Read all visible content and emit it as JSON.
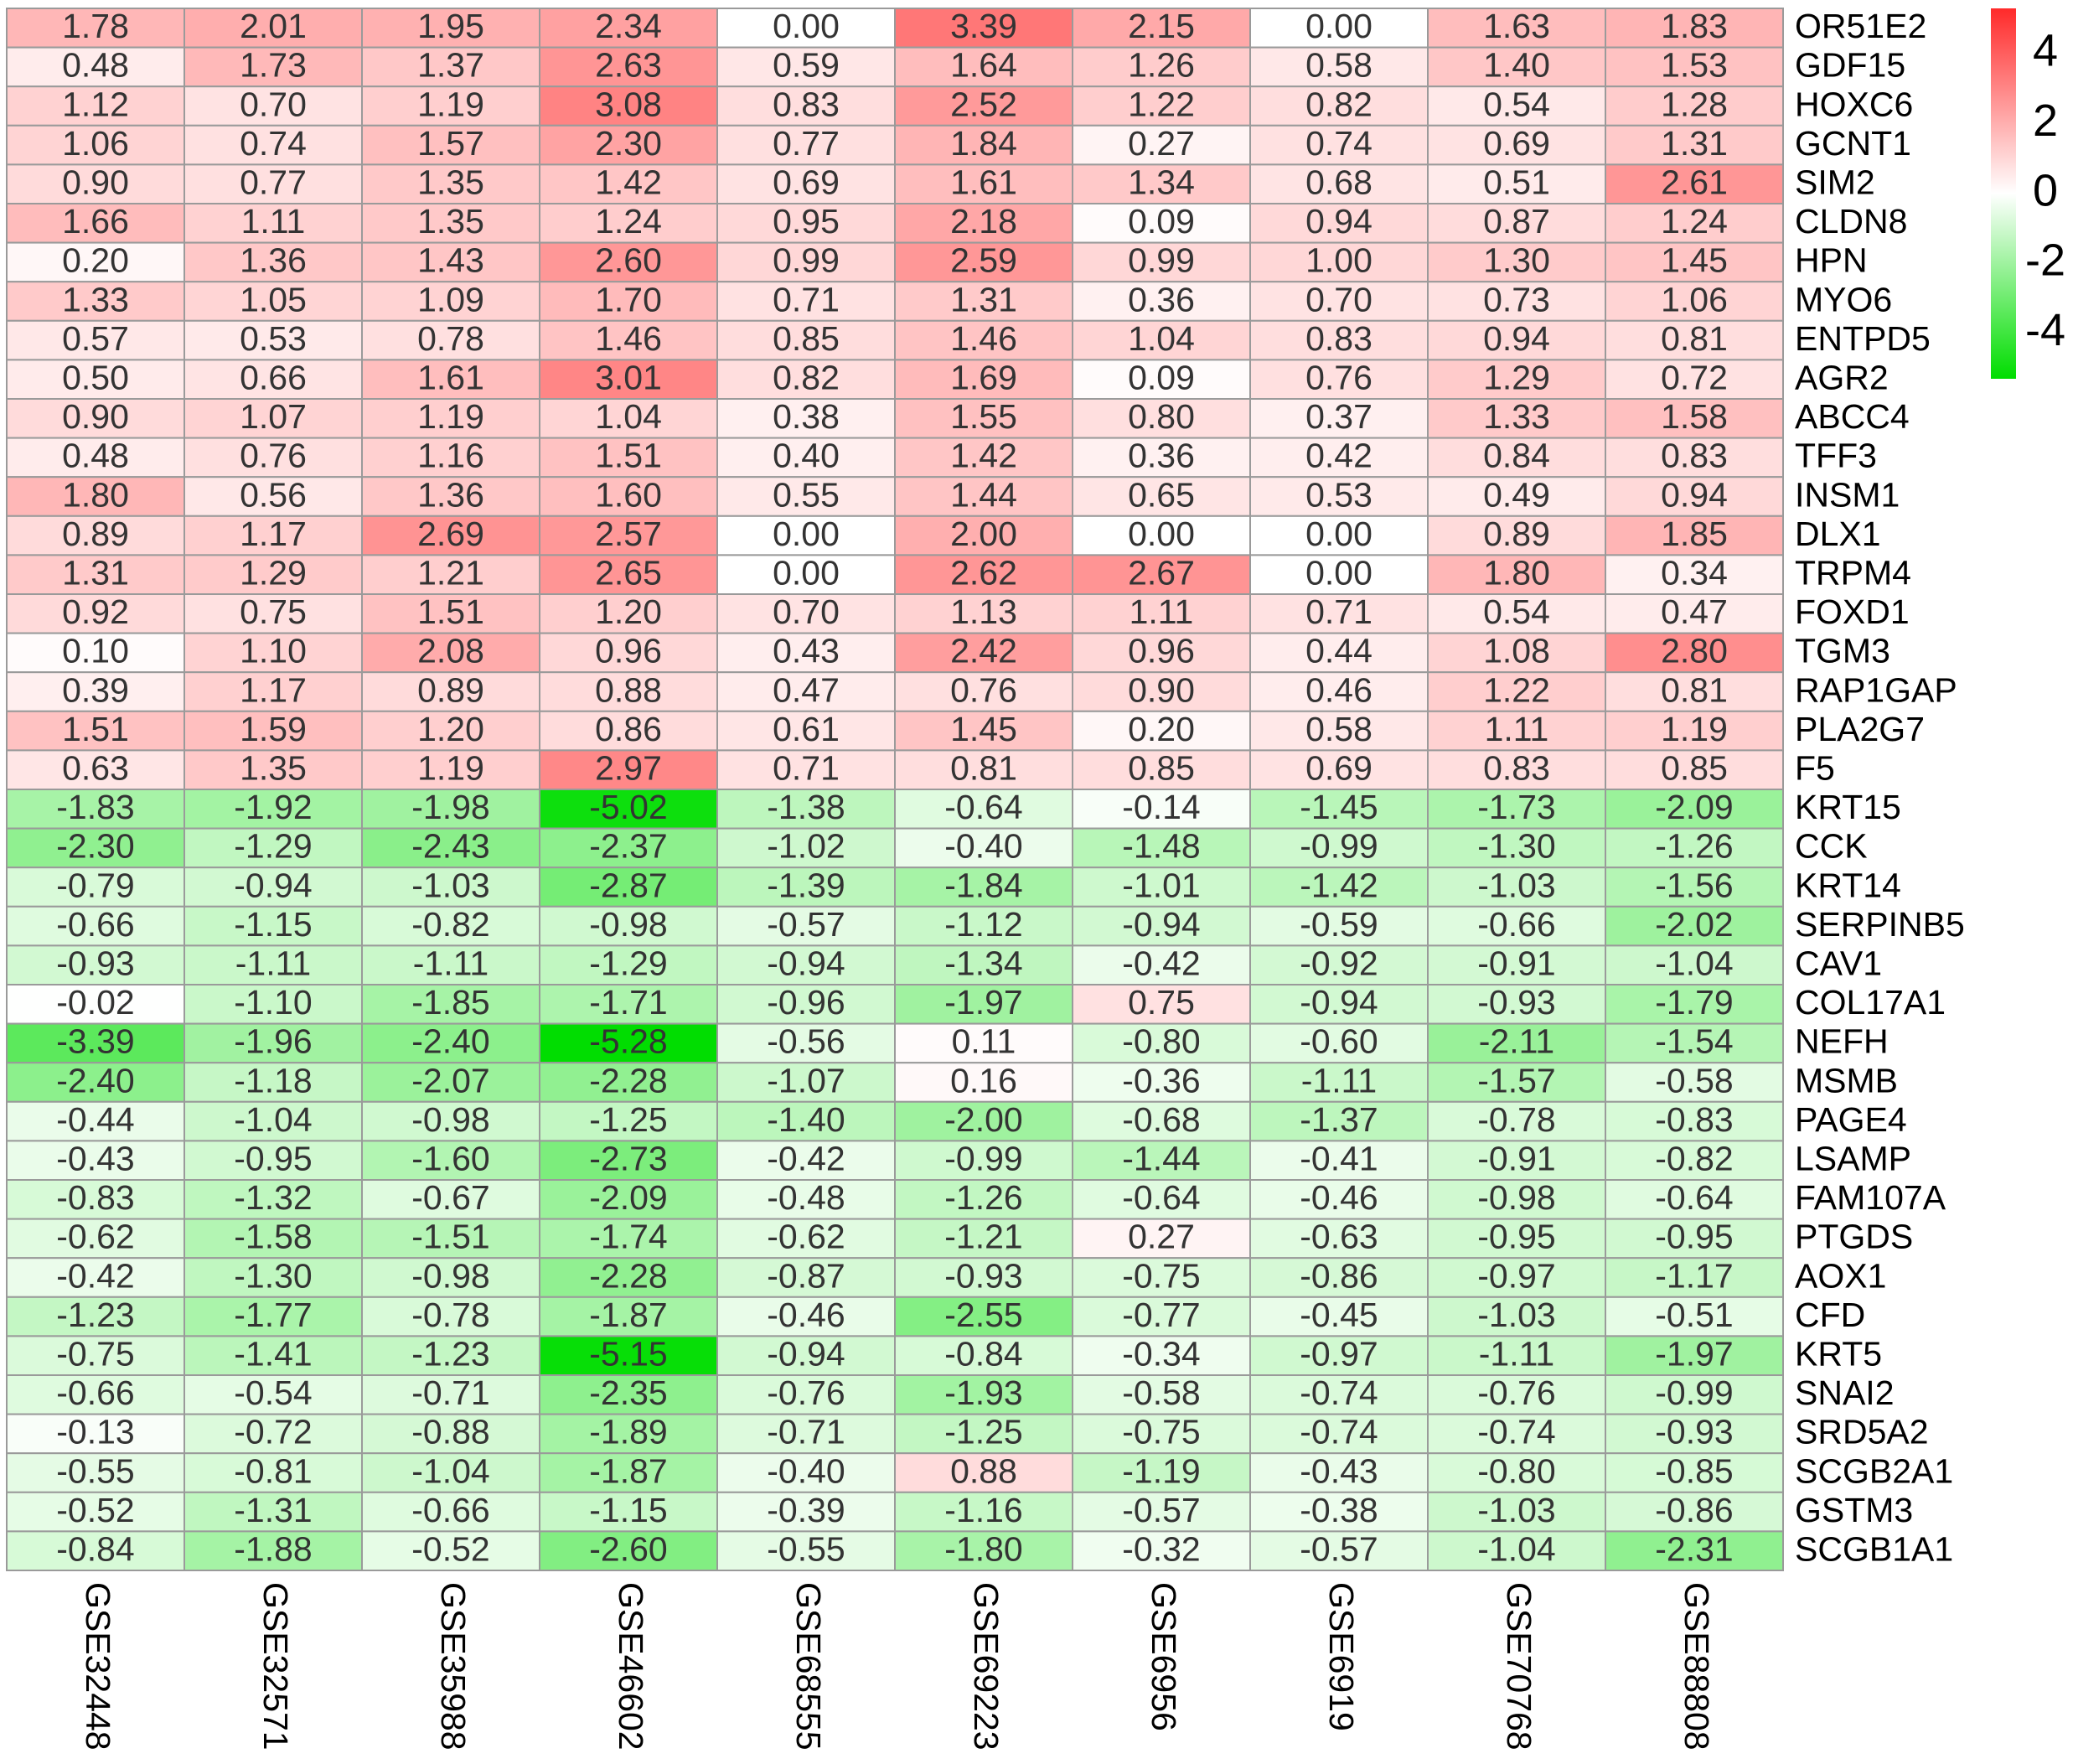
{
  "chart_data": {
    "type": "heatmap",
    "title": "",
    "columns": [
      "GSE32448",
      "GSE32571",
      "GSE35988",
      "GSE46602",
      "GSE68555",
      "GSE69223",
      "GSE6956",
      "GSE6919",
      "GSE70768",
      "GSE88808"
    ],
    "rows": [
      "OR51E2",
      "GDF15",
      "HOXC6",
      "GCNT1",
      "SIM2",
      "CLDN8",
      "HPN",
      "MYO6",
      "ENTPD5",
      "AGR2",
      "ABCC4",
      "TFF3",
      "INSM1",
      "DLX1",
      "TRPM4",
      "FOXD1",
      "TGM3",
      "RAP1GAP",
      "PLA2G7",
      "F5",
      "KRT15",
      "CCK",
      "KRT14",
      "SERPINB5",
      "CAV1",
      "COL17A1",
      "NEFH",
      "MSMB",
      "PAGE4",
      "LSAMP",
      "FAM107A",
      "PTGDS",
      "AOX1",
      "CFD",
      "KRT5",
      "SNAI2",
      "SRD5A2",
      "SCGB2A1",
      "GSTM3",
      "SCGB1A1"
    ],
    "values": [
      [
        "1.78",
        "2.01",
        "1.95",
        "2.34",
        "0.00",
        "3.39",
        "2.15",
        "0.00",
        "1.63",
        "1.83"
      ],
      [
        "0.48",
        "1.73",
        "1.37",
        "2.63",
        "0.59",
        "1.64",
        "1.26",
        "0.58",
        "1.40",
        "1.53"
      ],
      [
        "1.12",
        "0.70",
        "1.19",
        "3.08",
        "0.83",
        "2.52",
        "1.22",
        "0.82",
        "0.54",
        "1.28"
      ],
      [
        "1.06",
        "0.74",
        "1.57",
        "2.30",
        "0.77",
        "1.84",
        "0.27",
        "0.74",
        "0.69",
        "1.31"
      ],
      [
        "0.90",
        "0.77",
        "1.35",
        "1.42",
        "0.69",
        "1.61",
        "1.34",
        "0.68",
        "0.51",
        "2.61"
      ],
      [
        "1.66",
        "1.11",
        "1.35",
        "1.24",
        "0.95",
        "2.18",
        "0.09",
        "0.94",
        "0.87",
        "1.24"
      ],
      [
        "0.20",
        "1.36",
        "1.43",
        "2.60",
        "0.99",
        "2.59",
        "0.99",
        "1.00",
        "1.30",
        "1.45"
      ],
      [
        "1.33",
        "1.05",
        "1.09",
        "1.70",
        "0.71",
        "1.31",
        "0.36",
        "0.70",
        "0.73",
        "1.06"
      ],
      [
        "0.57",
        "0.53",
        "0.78",
        "1.46",
        "0.85",
        "1.46",
        "1.04",
        "0.83",
        "0.94",
        "0.81"
      ],
      [
        "0.50",
        "0.66",
        "1.61",
        "3.01",
        "0.82",
        "1.69",
        "0.09",
        "0.76",
        "1.29",
        "0.72"
      ],
      [
        "0.90",
        "1.07",
        "1.19",
        "1.04",
        "0.38",
        "1.55",
        "0.80",
        "0.37",
        "1.33",
        "1.58"
      ],
      [
        "0.48",
        "0.76",
        "1.16",
        "1.51",
        "0.40",
        "1.42",
        "0.36",
        "0.42",
        "0.84",
        "0.83"
      ],
      [
        "1.80",
        "0.56",
        "1.36",
        "1.60",
        "0.55",
        "1.44",
        "0.65",
        "0.53",
        "0.49",
        "0.94"
      ],
      [
        "0.89",
        "1.17",
        "2.69",
        "2.57",
        "0.00",
        "2.00",
        "0.00",
        "0.00",
        "0.89",
        "1.85"
      ],
      [
        "1.31",
        "1.29",
        "1.21",
        "2.65",
        "0.00",
        "2.62",
        "2.67",
        "0.00",
        "1.80",
        "0.34"
      ],
      [
        "0.92",
        "0.75",
        "1.51",
        "1.20",
        "0.70",
        "1.13",
        "1.11",
        "0.71",
        "0.54",
        "0.47"
      ],
      [
        "0.10",
        "1.10",
        "2.08",
        "0.96",
        "0.43",
        "2.42",
        "0.96",
        "0.44",
        "1.08",
        "2.80"
      ],
      [
        "0.39",
        "1.17",
        "0.89",
        "0.88",
        "0.47",
        "0.76",
        "0.90",
        "0.46",
        "1.22",
        "0.81"
      ],
      [
        "1.51",
        "1.59",
        "1.20",
        "0.86",
        "0.61",
        "1.45",
        "0.20",
        "0.58",
        "1.11",
        "1.19"
      ],
      [
        "0.63",
        "1.35",
        "1.19",
        "2.97",
        "0.71",
        "0.81",
        "0.85",
        "0.69",
        "0.83",
        "0.85"
      ],
      [
        "-1.83",
        "-1.92",
        "-1.98",
        "-5.02",
        "-1.38",
        "-0.64",
        "-0.14",
        "-1.45",
        "-1.73",
        "-2.09"
      ],
      [
        "-2.30",
        "-1.29",
        "-2.43",
        "-2.37",
        "-1.02",
        "-0.40",
        "-1.48",
        "-0.99",
        "-1.30",
        "-1.26"
      ],
      [
        "-0.79",
        "-0.94",
        "-1.03",
        "-2.87",
        "-1.39",
        "-1.84",
        "-1.01",
        "-1.42",
        "-1.03",
        "-1.56"
      ],
      [
        "-0.66",
        "-1.15",
        "-0.82",
        "-0.98",
        "-0.57",
        "-1.12",
        "-0.94",
        "-0.59",
        "-0.66",
        "-2.02"
      ],
      [
        "-0.93",
        "-1.11",
        "-1.11",
        "-1.29",
        "-0.94",
        "-1.34",
        "-0.42",
        "-0.92",
        "-0.91",
        "-1.04"
      ],
      [
        "-0.02",
        "-1.10",
        "-1.85",
        "-1.71",
        "-0.96",
        "-1.97",
        "0.75",
        "-0.94",
        "-0.93",
        "-1.79"
      ],
      [
        "-3.39",
        "-1.96",
        "-2.40",
        "-5.28",
        "-0.56",
        "0.11",
        "-0.80",
        "-0.60",
        "-2.11",
        "-1.54"
      ],
      [
        "-2.40",
        "-1.18",
        "-2.07",
        "-2.28",
        "-1.07",
        "0.16",
        "-0.36",
        "-1.11",
        "-1.57",
        "-0.58"
      ],
      [
        "-0.44",
        "-1.04",
        "-0.98",
        "-1.25",
        "-1.40",
        "-2.00",
        "-0.68",
        "-1.37",
        "-0.78",
        "-0.83"
      ],
      [
        "-0.43",
        "-0.95",
        "-1.60",
        "-2.73",
        "-0.42",
        "-0.99",
        "-1.44",
        "-0.41",
        "-0.91",
        "-0.82"
      ],
      [
        "-0.83",
        "-1.32",
        "-0.67",
        "-2.09",
        "-0.48",
        "-1.26",
        "-0.64",
        "-0.46",
        "-0.98",
        "-0.64"
      ],
      [
        "-0.62",
        "-1.58",
        "-1.51",
        "-1.74",
        "-0.62",
        "-1.21",
        "0.27",
        "-0.63",
        "-0.95",
        "-0.95"
      ],
      [
        "-0.42",
        "-1.30",
        "-0.98",
        "-2.28",
        "-0.87",
        "-0.93",
        "-0.75",
        "-0.86",
        "-0.97",
        "-1.17"
      ],
      [
        "-1.23",
        "-1.77",
        "-0.78",
        "-1.87",
        "-0.46",
        "-2.55",
        "-0.77",
        "-0.45",
        "-1.03",
        "-0.51"
      ],
      [
        "-0.75",
        "-1.41",
        "-1.23",
        "-5.15",
        "-0.94",
        "-0.84",
        "-0.34",
        "-0.97",
        "-1.11",
        "-1.97"
      ],
      [
        "-0.66",
        "-0.54",
        "-0.71",
        "-2.35",
        "-0.76",
        "-1.93",
        "-0.58",
        "-0.74",
        "-0.76",
        "-0.99"
      ],
      [
        "-0.13",
        "-0.72",
        "-0.88",
        "-1.89",
        "-0.71",
        "-1.25",
        "-0.75",
        "-0.74",
        "-0.74",
        "-0.93"
      ],
      [
        "-0.55",
        "-0.81",
        "-1.04",
        "-1.87",
        "-0.40",
        "0.88",
        "-1.19",
        "-0.43",
        "-0.80",
        "-0.85"
      ],
      [
        "-0.52",
        "-1.31",
        "-0.66",
        "-1.15",
        "-0.39",
        "-1.16",
        "-0.57",
        "-0.38",
        "-1.03",
        "-0.86"
      ],
      [
        "-0.84",
        "-1.88",
        "-0.52",
        "-2.60",
        "-0.55",
        "-1.80",
        "-0.32",
        "-0.57",
        "-1.04",
        "-2.31"
      ]
    ],
    "color_scale": {
      "min": -5.3,
      "max": 5.3,
      "low_color": "#00dd00",
      "mid_color": "#ffffff",
      "high_color": "#ff2a2a",
      "ticks": [
        "4",
        "2",
        "0",
        "-2",
        "-4"
      ]
    },
    "legend_position": "top-right",
    "grid": true
  }
}
